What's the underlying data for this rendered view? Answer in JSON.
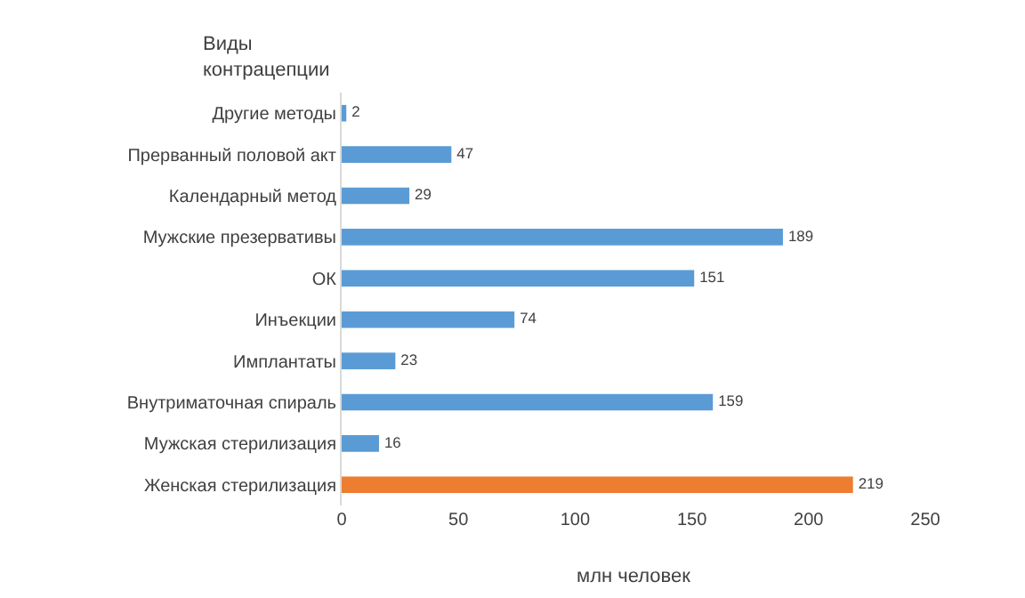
{
  "chart_data": {
    "type": "bar",
    "orientation": "horizontal",
    "ylabel": "Виды контрацепции",
    "xlabel": "млн человек",
    "categories": [
      "Другие методы",
      "Прерванный половой акт",
      "Календарный метод",
      "Мужские презервативы",
      "ОК",
      "Инъекции",
      "Имплантаты",
      "Внутриматочная спираль",
      "Мужская стерилизация",
      "Женская стерилизация"
    ],
    "values": [
      2,
      47,
      29,
      189,
      151,
      74,
      23,
      159,
      16,
      219
    ],
    "colors": [
      "#5b9bd5",
      "#5b9bd5",
      "#5b9bd5",
      "#5b9bd5",
      "#5b9bd5",
      "#5b9bd5",
      "#5b9bd5",
      "#5b9bd5",
      "#5b9bd5",
      "#ed7d31"
    ],
    "xlim": [
      0,
      250
    ],
    "xticks": [
      0,
      50,
      100,
      150,
      200,
      250
    ],
    "grid": false,
    "data_labels": true
  }
}
